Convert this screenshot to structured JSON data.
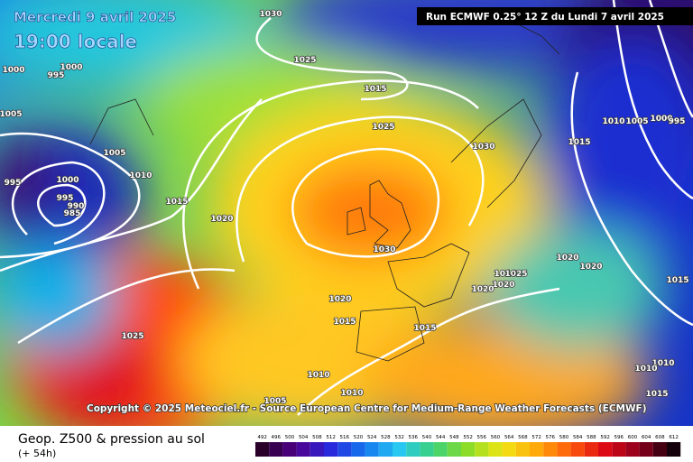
{
  "header": {
    "date": "Mercredi 9 avril 2025",
    "time": "19:00 locale",
    "run": "Run ECMWF 0.25° 12 Z du Lundi 7 avril 2025"
  },
  "copyright": "Copyright © 2025 Meteociel.fr - Source European Centre for Medium-Range Weather Forecasts (ECMWF)",
  "isobar_labels": [
    1030,
    1025,
    1015,
    1000,
    995,
    1000,
    1005,
    1025,
    1030,
    1015,
    1010,
    1005,
    1000,
    995,
    1005,
    1010,
    995,
    1000,
    995,
    990,
    985,
    1015,
    1020,
    1030,
    1020,
    1020,
    1010,
    1025,
    1020,
    1020,
    1015,
    1020,
    1015,
    1015,
    1025,
    1010,
    1010,
    1010,
    1010,
    1005,
    1015
  ],
  "footer": {
    "title": "Geop. Z500 & pression au sol",
    "lead": "(+ 54h)"
  },
  "colorbar": [
    492,
    496,
    500,
    504,
    508,
    512,
    516,
    520,
    524,
    528,
    532,
    536,
    540,
    544,
    548,
    552,
    556,
    560,
    564,
    568,
    572,
    576,
    580,
    584,
    588,
    592,
    596,
    600,
    604,
    608,
    612
  ]
}
